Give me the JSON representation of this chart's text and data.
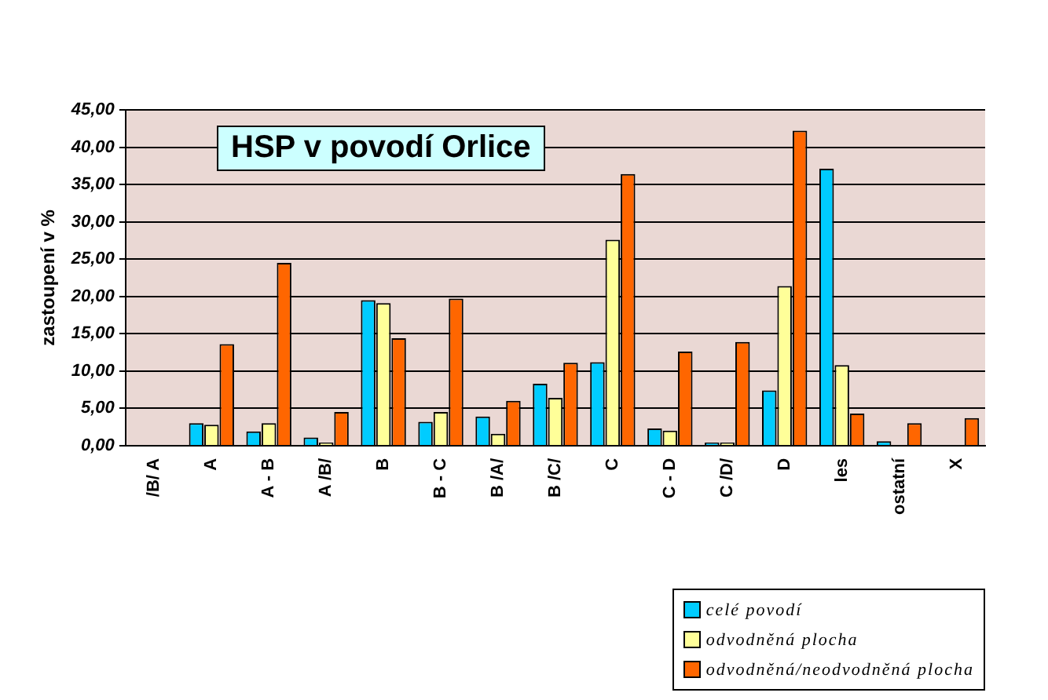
{
  "chart_data": {
    "type": "bar",
    "title": "HSP v povodí Orlice",
    "ylabel": "zastoupení v %",
    "categories": [
      "/B/ A",
      "A",
      "A - B",
      "A /B/",
      "B",
      "B - C",
      "B /A/",
      "B /C/",
      "C",
      "C - D",
      "C /D/",
      "D",
      "les",
      "ostatní",
      "X"
    ],
    "series": [
      {
        "name": "celé povodí",
        "color": "#00ccff",
        "values": [
          0,
          3.0,
          1.9,
          1.1,
          19.5,
          3.2,
          3.9,
          8.3,
          11.2,
          2.3,
          0.4,
          7.4,
          37.1,
          0.6,
          0
        ]
      },
      {
        "name": "odvodněná plocha",
        "color": "#ffff99",
        "values": [
          0,
          2.8,
          3.0,
          0.4,
          19.1,
          4.5,
          1.6,
          6.4,
          27.6,
          2.0,
          0.4,
          21.4,
          10.8,
          0,
          0
        ]
      },
      {
        "name": "odvodněná/neodvodněná plocha",
        "color": "#ff6600",
        "values": [
          0,
          13.6,
          24.5,
          4.5,
          14.4,
          19.7,
          6.0,
          11.1,
          36.4,
          12.6,
          13.9,
          42.2,
          4.3,
          3.0,
          3.7
        ]
      }
    ],
    "ylim": [
      0,
      45
    ],
    "yticks": [
      {
        "value": 0,
        "label": "0,00"
      },
      {
        "value": 5,
        "label": "5,00"
      },
      {
        "value": 10,
        "label": "10,00"
      },
      {
        "value": 15,
        "label": "15,00"
      },
      {
        "value": 20,
        "label": "20,00"
      },
      {
        "value": 25,
        "label": "25,00"
      },
      {
        "value": 30,
        "label": "30,00"
      },
      {
        "value": 35,
        "label": "35,00"
      },
      {
        "value": 40,
        "label": "40,00"
      },
      {
        "value": 45,
        "label": "45,00"
      }
    ],
    "grid": "y",
    "legend": "bottom right"
  }
}
